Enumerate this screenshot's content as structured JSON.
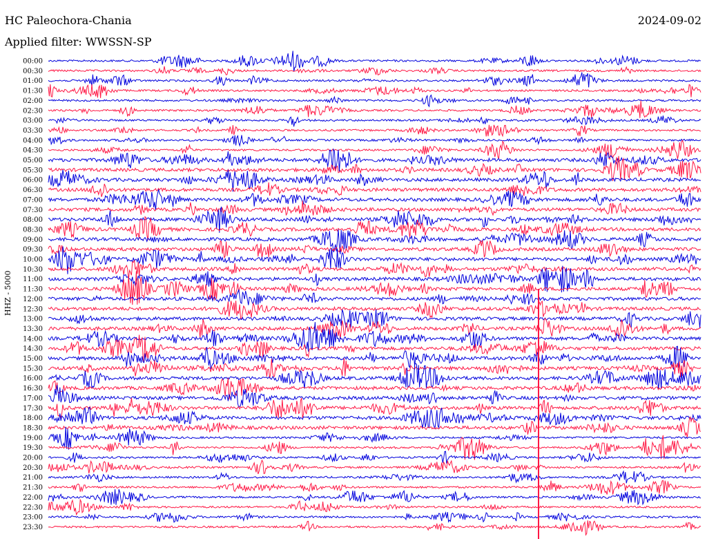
{
  "header": {
    "station": "HC Paleochora-Chania",
    "date": "2024-09-02",
    "filter_label": "Applied filter: WWSSN-SP"
  },
  "channel_label": "HHZ - 5000",
  "colors": {
    "series_a": "#0000dd",
    "series_b": "#ff1744"
  },
  "chart_data": {
    "type": "line",
    "title": "HC Paleochora-Chania",
    "ylabel": "HHZ - 5000",
    "y_tick_labels": [
      "00:00",
      "00:30",
      "01:00",
      "01:30",
      "02:00",
      "02:30",
      "03:00",
      "03:30",
      "04:00",
      "04:30",
      "05:00",
      "05:30",
      "06:00",
      "06:30",
      "07:00",
      "07:30",
      "08:00",
      "08:30",
      "09:00",
      "09:30",
      "10:00",
      "10:30",
      "11:00",
      "11:30",
      "12:00",
      "12:30",
      "13:00",
      "13:30",
      "14:00",
      "14:30",
      "15:00",
      "15:30",
      "16:00",
      "16:30",
      "17:00",
      "17:30",
      "18:00",
      "18:30",
      "19:00",
      "19:30",
      "20:00",
      "20:30",
      "21:00",
      "21:30",
      "22:00",
      "22:30",
      "23:00",
      "23:30"
    ],
    "trace_colors_alternate": [
      "#0000dd",
      "#ff1744"
    ],
    "grid": false
  }
}
